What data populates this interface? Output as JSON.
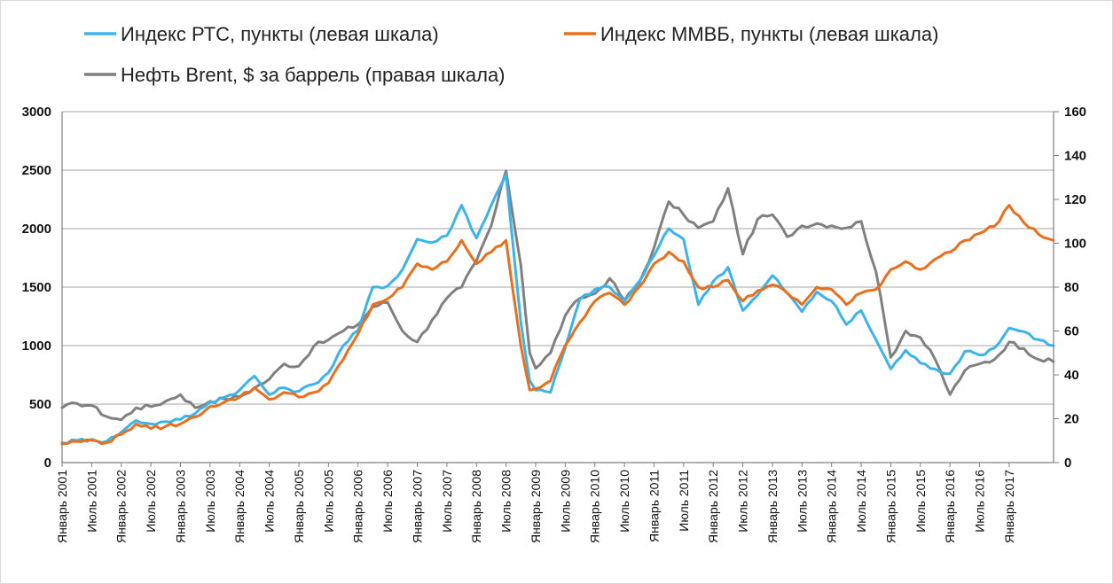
{
  "chart_data": {
    "type": "line",
    "title": "",
    "legend": {
      "placement": "top",
      "entries": [
        {
          "key": "rts",
          "label": "Индекс РТС, пункты (левая шкала)"
        },
        {
          "key": "micex",
          "label": "Индекс ММВБ, пункты (левая шкала)"
        },
        {
          "key": "brent",
          "label": "Нефть Brent, $ за баррель (правая шкала)"
        }
      ]
    },
    "left_axis": {
      "min": 0,
      "max": 3000,
      "ticks": [
        "0",
        "500",
        "1000",
        "1500",
        "2000",
        "2500",
        "3000"
      ]
    },
    "right_axis": {
      "min": 0,
      "max": 160,
      "ticks": [
        "0",
        "20",
        "40",
        "60",
        "80",
        "100",
        "120",
        "140",
        "160"
      ]
    },
    "x_range": [
      2001.0,
      2017.75
    ],
    "x_ticks": [
      {
        "label": "Январь 2001",
        "t": 2001.0
      },
      {
        "label": "Июль 2001",
        "t": 2001.5
      },
      {
        "label": "Январь 2002",
        "t": 2002.0
      },
      {
        "label": "Июль 2002",
        "t": 2002.5
      },
      {
        "label": "Январь 2003",
        "t": 2003.0
      },
      {
        "label": "Июль 2003",
        "t": 2003.5
      },
      {
        "label": "Январь 2004",
        "t": 2004.0
      },
      {
        "label": "Июль 2004",
        "t": 2004.5
      },
      {
        "label": "Январь 2005",
        "t": 2005.0
      },
      {
        "label": "Июль 2005",
        "t": 2005.5
      },
      {
        "label": "Январь 2006",
        "t": 2006.0
      },
      {
        "label": "Июль 2006",
        "t": 2006.5
      },
      {
        "label": "Январь 2007",
        "t": 2007.0
      },
      {
        "label": "Июль 2007",
        "t": 2007.5
      },
      {
        "label": "Январь 2008",
        "t": 2008.0
      },
      {
        "label": "Июль 2008",
        "t": 2008.5
      },
      {
        "label": "Январь 2009",
        "t": 2009.0
      },
      {
        "label": "Июль 2009",
        "t": 2009.5
      },
      {
        "label": "Январь 2010",
        "t": 2010.0
      },
      {
        "label": "Июль 2010",
        "t": 2010.5
      },
      {
        "label": "Январь 2011",
        "t": 2011.0
      },
      {
        "label": "Июль 2011",
        "t": 2011.5
      },
      {
        "label": "Январь 2012",
        "t": 2012.0
      },
      {
        "label": "Июль 2012",
        "t": 2012.5
      },
      {
        "label": "Январь 2013",
        "t": 2013.0
      },
      {
        "label": "Июль 2013",
        "t": 2013.5
      },
      {
        "label": "Январь 2014",
        "t": 2014.0
      },
      {
        "label": "Июль 2014",
        "t": 2014.5
      },
      {
        "label": "Январь 2015",
        "t": 2015.0
      },
      {
        "label": "Июль 2015",
        "t": 2015.5
      },
      {
        "label": "Январь 2016",
        "t": 2016.0
      },
      {
        "label": "Июль 2016",
        "t": 2016.5
      },
      {
        "label": "Январь 2017",
        "t": 2017.0
      }
    ],
    "grid": true,
    "series": [
      {
        "key": "brent",
        "name": "Нефть Brent, $ за баррель (правая шкала)",
        "color": "#808080",
        "axis": "right",
        "points": [
          [
            2001.0,
            25
          ],
          [
            2001.25,
            27
          ],
          [
            2001.5,
            26
          ],
          [
            2001.75,
            21
          ],
          [
            2002.0,
            19.5
          ],
          [
            2002.25,
            25
          ],
          [
            2002.5,
            25.5
          ],
          [
            2002.75,
            28
          ],
          [
            2003.0,
            31
          ],
          [
            2003.25,
            25
          ],
          [
            2003.5,
            28
          ],
          [
            2003.75,
            29
          ],
          [
            2004.0,
            30
          ],
          [
            2004.25,
            34
          ],
          [
            2004.5,
            38
          ],
          [
            2004.75,
            45
          ],
          [
            2005.0,
            44
          ],
          [
            2005.25,
            53
          ],
          [
            2005.5,
            56
          ],
          [
            2005.75,
            60
          ],
          [
            2006.0,
            63
          ],
          [
            2006.25,
            71
          ],
          [
            2006.5,
            73
          ],
          [
            2006.75,
            60
          ],
          [
            2007.0,
            55
          ],
          [
            2007.25,
            65
          ],
          [
            2007.5,
            75
          ],
          [
            2007.75,
            80
          ],
          [
            2008.0,
            92
          ],
          [
            2008.25,
            108
          ],
          [
            2008.5,
            133
          ],
          [
            2008.75,
            90
          ],
          [
            2008.9,
            50
          ],
          [
            2009.0,
            43
          ],
          [
            2009.25,
            50
          ],
          [
            2009.5,
            67
          ],
          [
            2009.75,
            75
          ],
          [
            2010.0,
            77
          ],
          [
            2010.25,
            84
          ],
          [
            2010.5,
            74
          ],
          [
            2010.75,
            82
          ],
          [
            2011.0,
            98
          ],
          [
            2011.25,
            119
          ],
          [
            2011.5,
            113
          ],
          [
            2011.75,
            107
          ],
          [
            2012.0,
            110
          ],
          [
            2012.25,
            125
          ],
          [
            2012.5,
            95
          ],
          [
            2012.75,
            111
          ],
          [
            2013.0,
            113
          ],
          [
            2013.25,
            103
          ],
          [
            2013.5,
            108
          ],
          [
            2013.75,
            109
          ],
          [
            2014.0,
            108
          ],
          [
            2014.25,
            107
          ],
          [
            2014.5,
            110
          ],
          [
            2014.75,
            87
          ],
          [
            2015.0,
            48
          ],
          [
            2015.25,
            60
          ],
          [
            2015.5,
            57
          ],
          [
            2015.75,
            47
          ],
          [
            2016.0,
            31
          ],
          [
            2016.25,
            42
          ],
          [
            2016.5,
            45
          ],
          [
            2016.75,
            47
          ],
          [
            2017.0,
            55
          ],
          [
            2017.25,
            52
          ],
          [
            2017.5,
            47
          ],
          [
            2017.75,
            46
          ]
        ]
      },
      {
        "key": "rts",
        "name": "Индекс РТС, пункты (левая шкала)",
        "color": "#3cb3ea",
        "axis": "left",
        "points": [
          [
            2001.0,
            170
          ],
          [
            2001.25,
            190
          ],
          [
            2001.5,
            200
          ],
          [
            2001.75,
            180
          ],
          [
            2002.0,
            260
          ],
          [
            2002.25,
            360
          ],
          [
            2002.5,
            330
          ],
          [
            2002.75,
            350
          ],
          [
            2003.0,
            370
          ],
          [
            2003.25,
            420
          ],
          [
            2003.5,
            520
          ],
          [
            2003.75,
            560
          ],
          [
            2004.0,
            620
          ],
          [
            2004.25,
            740
          ],
          [
            2004.5,
            580
          ],
          [
            2004.75,
            640
          ],
          [
            2005.0,
            610
          ],
          [
            2005.25,
            670
          ],
          [
            2005.5,
            770
          ],
          [
            2005.75,
            1000
          ],
          [
            2006.0,
            1130
          ],
          [
            2006.25,
            1500
          ],
          [
            2006.5,
            1510
          ],
          [
            2006.75,
            1650
          ],
          [
            2007.0,
            1910
          ],
          [
            2007.25,
            1880
          ],
          [
            2007.5,
            1940
          ],
          [
            2007.75,
            2200
          ],
          [
            2008.0,
            1920
          ],
          [
            2008.25,
            2200
          ],
          [
            2008.5,
            2460
          ],
          [
            2008.75,
            1200
          ],
          [
            2008.9,
            700
          ],
          [
            2009.0,
            620
          ],
          [
            2009.25,
            600
          ],
          [
            2009.5,
            980
          ],
          [
            2009.75,
            1400
          ],
          [
            2010.0,
            1480
          ],
          [
            2010.25,
            1500
          ],
          [
            2010.5,
            1380
          ],
          [
            2010.75,
            1550
          ],
          [
            2011.0,
            1770
          ],
          [
            2011.25,
            2000
          ],
          [
            2011.5,
            1910
          ],
          [
            2011.75,
            1350
          ],
          [
            2012.0,
            1550
          ],
          [
            2012.25,
            1670
          ],
          [
            2012.5,
            1300
          ],
          [
            2012.75,
            1430
          ],
          [
            2013.0,
            1600
          ],
          [
            2013.25,
            1450
          ],
          [
            2013.5,
            1290
          ],
          [
            2013.75,
            1460
          ],
          [
            2014.0,
            1380
          ],
          [
            2014.25,
            1180
          ],
          [
            2014.5,
            1300
          ],
          [
            2014.75,
            1050
          ],
          [
            2015.0,
            800
          ],
          [
            2015.25,
            960
          ],
          [
            2015.5,
            850
          ],
          [
            2015.75,
            800
          ],
          [
            2016.0,
            760
          ],
          [
            2016.25,
            950
          ],
          [
            2016.5,
            920
          ],
          [
            2016.75,
            980
          ],
          [
            2017.0,
            1150
          ],
          [
            2017.25,
            1120
          ],
          [
            2017.5,
            1050
          ],
          [
            2017.75,
            1000
          ]
        ]
      },
      {
        "key": "micex",
        "name": "Индекс ММВБ, пункты (левая шкала)",
        "color": "#e96f1d",
        "axis": "left",
        "points": [
          [
            2001.0,
            160
          ],
          [
            2001.25,
            180
          ],
          [
            2001.5,
            190
          ],
          [
            2001.75,
            170
          ],
          [
            2002.0,
            240
          ],
          [
            2002.25,
            330
          ],
          [
            2002.5,
            290
          ],
          [
            2002.75,
            310
          ],
          [
            2003.0,
            330
          ],
          [
            2003.25,
            390
          ],
          [
            2003.5,
            480
          ],
          [
            2003.75,
            520
          ],
          [
            2004.0,
            560
          ],
          [
            2004.25,
            640
          ],
          [
            2004.5,
            540
          ],
          [
            2004.75,
            600
          ],
          [
            2005.0,
            560
          ],
          [
            2005.25,
            600
          ],
          [
            2005.5,
            680
          ],
          [
            2005.75,
            880
          ],
          [
            2006.0,
            1100
          ],
          [
            2006.25,
            1350
          ],
          [
            2006.5,
            1400
          ],
          [
            2006.75,
            1500
          ],
          [
            2007.0,
            1700
          ],
          [
            2007.25,
            1650
          ],
          [
            2007.5,
            1720
          ],
          [
            2007.75,
            1900
          ],
          [
            2008.0,
            1700
          ],
          [
            2008.25,
            1800
          ],
          [
            2008.5,
            1900
          ],
          [
            2008.75,
            1000
          ],
          [
            2008.9,
            620
          ],
          [
            2009.0,
            630
          ],
          [
            2009.25,
            700
          ],
          [
            2009.5,
            1000
          ],
          [
            2009.75,
            1200
          ],
          [
            2010.0,
            1380
          ],
          [
            2010.25,
            1450
          ],
          [
            2010.5,
            1350
          ],
          [
            2010.75,
            1500
          ],
          [
            2011.0,
            1700
          ],
          [
            2011.25,
            1800
          ],
          [
            2011.5,
            1720
          ],
          [
            2011.75,
            1500
          ],
          [
            2012.0,
            1500
          ],
          [
            2012.25,
            1560
          ],
          [
            2012.5,
            1380
          ],
          [
            2012.75,
            1470
          ],
          [
            2013.0,
            1520
          ],
          [
            2013.25,
            1450
          ],
          [
            2013.5,
            1350
          ],
          [
            2013.75,
            1500
          ],
          [
            2014.0,
            1480
          ],
          [
            2014.25,
            1350
          ],
          [
            2014.5,
            1450
          ],
          [
            2014.75,
            1480
          ],
          [
            2015.0,
            1650
          ],
          [
            2015.25,
            1720
          ],
          [
            2015.5,
            1650
          ],
          [
            2015.75,
            1740
          ],
          [
            2016.0,
            1800
          ],
          [
            2016.25,
            1900
          ],
          [
            2016.5,
            1960
          ],
          [
            2016.75,
            2020
          ],
          [
            2017.0,
            2200
          ],
          [
            2017.25,
            2050
          ],
          [
            2017.5,
            1950
          ],
          [
            2017.75,
            1900
          ]
        ]
      }
    ]
  }
}
